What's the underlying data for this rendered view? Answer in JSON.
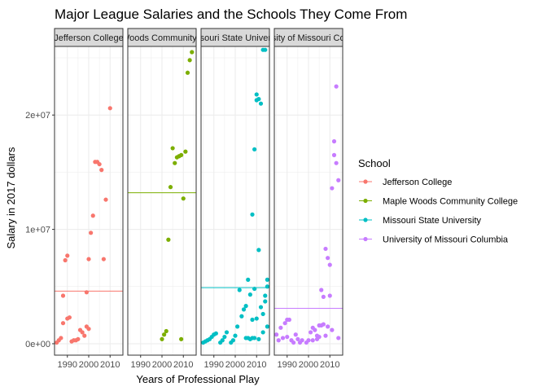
{
  "chart_data": {
    "type": "scatter",
    "title": "Major League Salaries and the Schools They Come From",
    "xlabel": "Years of Professional Play",
    "ylabel": "Salary in 2017 dollars",
    "x_ticks": [
      1990,
      2000,
      2010
    ],
    "x_tick_labels": [
      "1990",
      "2000",
      "2010"
    ],
    "xlim": [
      1984,
      2016
    ],
    "y_ticks": [
      0,
      10000000,
      20000000
    ],
    "y_tick_labels": [
      "0e+00",
      "1e+07",
      "2e+07"
    ],
    "ylim": [
      -1000000,
      26000000
    ],
    "grid": true,
    "legend": {
      "title": "School",
      "placement": "right"
    },
    "panels": [
      {
        "strip_label": "Jefferson College",
        "name": "Jefferson College",
        "color": "#F8766D",
        "mean_line": 4600000,
        "points": [
          [
            1985,
            100000
          ],
          [
            1986,
            300000
          ],
          [
            1987,
            500000
          ],
          [
            1988,
            1800000
          ],
          [
            1988,
            4200000
          ],
          [
            1989,
            7300000
          ],
          [
            1990,
            7700000
          ],
          [
            1990,
            2200000
          ],
          [
            1991,
            2300000
          ],
          [
            1992,
            200000
          ],
          [
            1993,
            300000
          ],
          [
            1994,
            300000
          ],
          [
            1995,
            400000
          ],
          [
            1996,
            1200000
          ],
          [
            1997,
            1000000
          ],
          [
            1998,
            700000
          ],
          [
            1999,
            1500000
          ],
          [
            1999,
            4500000
          ],
          [
            2000,
            7400000
          ],
          [
            2000,
            1300000
          ],
          [
            2001,
            9700000
          ],
          [
            2002,
            11200000
          ],
          [
            2003,
            15900000
          ],
          [
            2004,
            15900000
          ],
          [
            2005,
            15700000
          ],
          [
            2006,
            15200000
          ],
          [
            2007,
            7400000
          ],
          [
            2008,
            12600000
          ],
          [
            2010,
            20600000
          ]
        ]
      },
      {
        "strip_label": "Maple Woods Community College",
        "name": "Maple Woods Community College",
        "color": "#7CAE00",
        "mean_line": 13200000,
        "points": [
          [
            2000,
            400000
          ],
          [
            2001,
            800000
          ],
          [
            2002,
            1100000
          ],
          [
            2003,
            9100000
          ],
          [
            2004,
            13700000
          ],
          [
            2005,
            17100000
          ],
          [
            2006,
            15800000
          ],
          [
            2007,
            16300000
          ],
          [
            2008,
            16400000
          ],
          [
            2009,
            400000
          ],
          [
            2009,
            16500000
          ],
          [
            2010,
            12700000
          ],
          [
            2011,
            16800000
          ],
          [
            2012,
            23700000
          ],
          [
            2013,
            24800000
          ],
          [
            2014,
            25500000
          ]
        ]
      },
      {
        "strip_label": "Missouri State University",
        "name": "Missouri State University",
        "color": "#00BFC4",
        "mean_line": 4900000,
        "points": [
          [
            1985,
            100000
          ],
          [
            1986,
            200000
          ],
          [
            1987,
            300000
          ],
          [
            1988,
            400000
          ],
          [
            1989,
            600000
          ],
          [
            1990,
            800000
          ],
          [
            1991,
            900000
          ],
          [
            1993,
            100000
          ],
          [
            1994,
            300000
          ],
          [
            1995,
            600000
          ],
          [
            1996,
            1000000
          ],
          [
            1998,
            100000
          ],
          [
            1999,
            300000
          ],
          [
            2000,
            700000
          ],
          [
            2001,
            1500000
          ],
          [
            2002,
            4700000
          ],
          [
            2003,
            2400000
          ],
          [
            2004,
            3000000
          ],
          [
            2005,
            500000
          ],
          [
            2005,
            3300000
          ],
          [
            2006,
            5600000
          ],
          [
            2006,
            500000
          ],
          [
            2007,
            4300000
          ],
          [
            2007,
            400000
          ],
          [
            2008,
            2100000
          ],
          [
            2008,
            11300000
          ],
          [
            2008,
            500000
          ],
          [
            2009,
            4800000
          ],
          [
            2009,
            17000000
          ],
          [
            2009,
            500000
          ],
          [
            2010,
            21300000
          ],
          [
            2010,
            21800000
          ],
          [
            2010,
            2200000
          ],
          [
            2011,
            21400000
          ],
          [
            2011,
            8200000
          ],
          [
            2011,
            400000
          ],
          [
            2012,
            21000000
          ],
          [
            2012,
            3200000
          ],
          [
            2013,
            25700000
          ],
          [
            2013,
            2600000
          ],
          [
            2013,
            1000000
          ],
          [
            2014,
            25700000
          ],
          [
            2014,
            4200000
          ],
          [
            2014,
            3700000
          ],
          [
            2015,
            5000000
          ],
          [
            2015,
            5600000
          ],
          [
            2015,
            1500000
          ]
        ]
      },
      {
        "strip_label": "University of Missouri Columbia",
        "name": "University of Missouri Columbia",
        "color": "#C77CFF",
        "mean_line": 3100000,
        "points": [
          [
            1985,
            800000
          ],
          [
            1986,
            300000
          ],
          [
            1987,
            1400000
          ],
          [
            1988,
            500000
          ],
          [
            1989,
            1800000
          ],
          [
            1990,
            2100000
          ],
          [
            1990,
            600000
          ],
          [
            1991,
            2100000
          ],
          [
            1992,
            300000
          ],
          [
            1993,
            100000
          ],
          [
            1994,
            800000
          ],
          [
            1995,
            400000
          ],
          [
            1996,
            100000
          ],
          [
            1997,
            300000
          ],
          [
            1999,
            100000
          ],
          [
            2000,
            300000
          ],
          [
            2001,
            1000000
          ],
          [
            2002,
            300000
          ],
          [
            2002,
            1400000
          ],
          [
            2003,
            1200000
          ],
          [
            2004,
            700000
          ],
          [
            2004,
            400000
          ],
          [
            2005,
            1600000
          ],
          [
            2005,
            600000
          ],
          [
            2006,
            4700000
          ],
          [
            2006,
            1600000
          ],
          [
            2007,
            4100000
          ],
          [
            2007,
            1700000
          ],
          [
            2008,
            8300000
          ],
          [
            2008,
            700000
          ],
          [
            2009,
            7500000
          ],
          [
            2009,
            1500000
          ],
          [
            2010,
            6900000
          ],
          [
            2010,
            4200000
          ],
          [
            2011,
            13600000
          ],
          [
            2011,
            1200000
          ],
          [
            2012,
            16500000
          ],
          [
            2012,
            17700000
          ],
          [
            2013,
            15800000
          ],
          [
            2013,
            22500000
          ],
          [
            2014,
            14300000
          ],
          [
            2014,
            500000
          ]
        ]
      }
    ]
  }
}
